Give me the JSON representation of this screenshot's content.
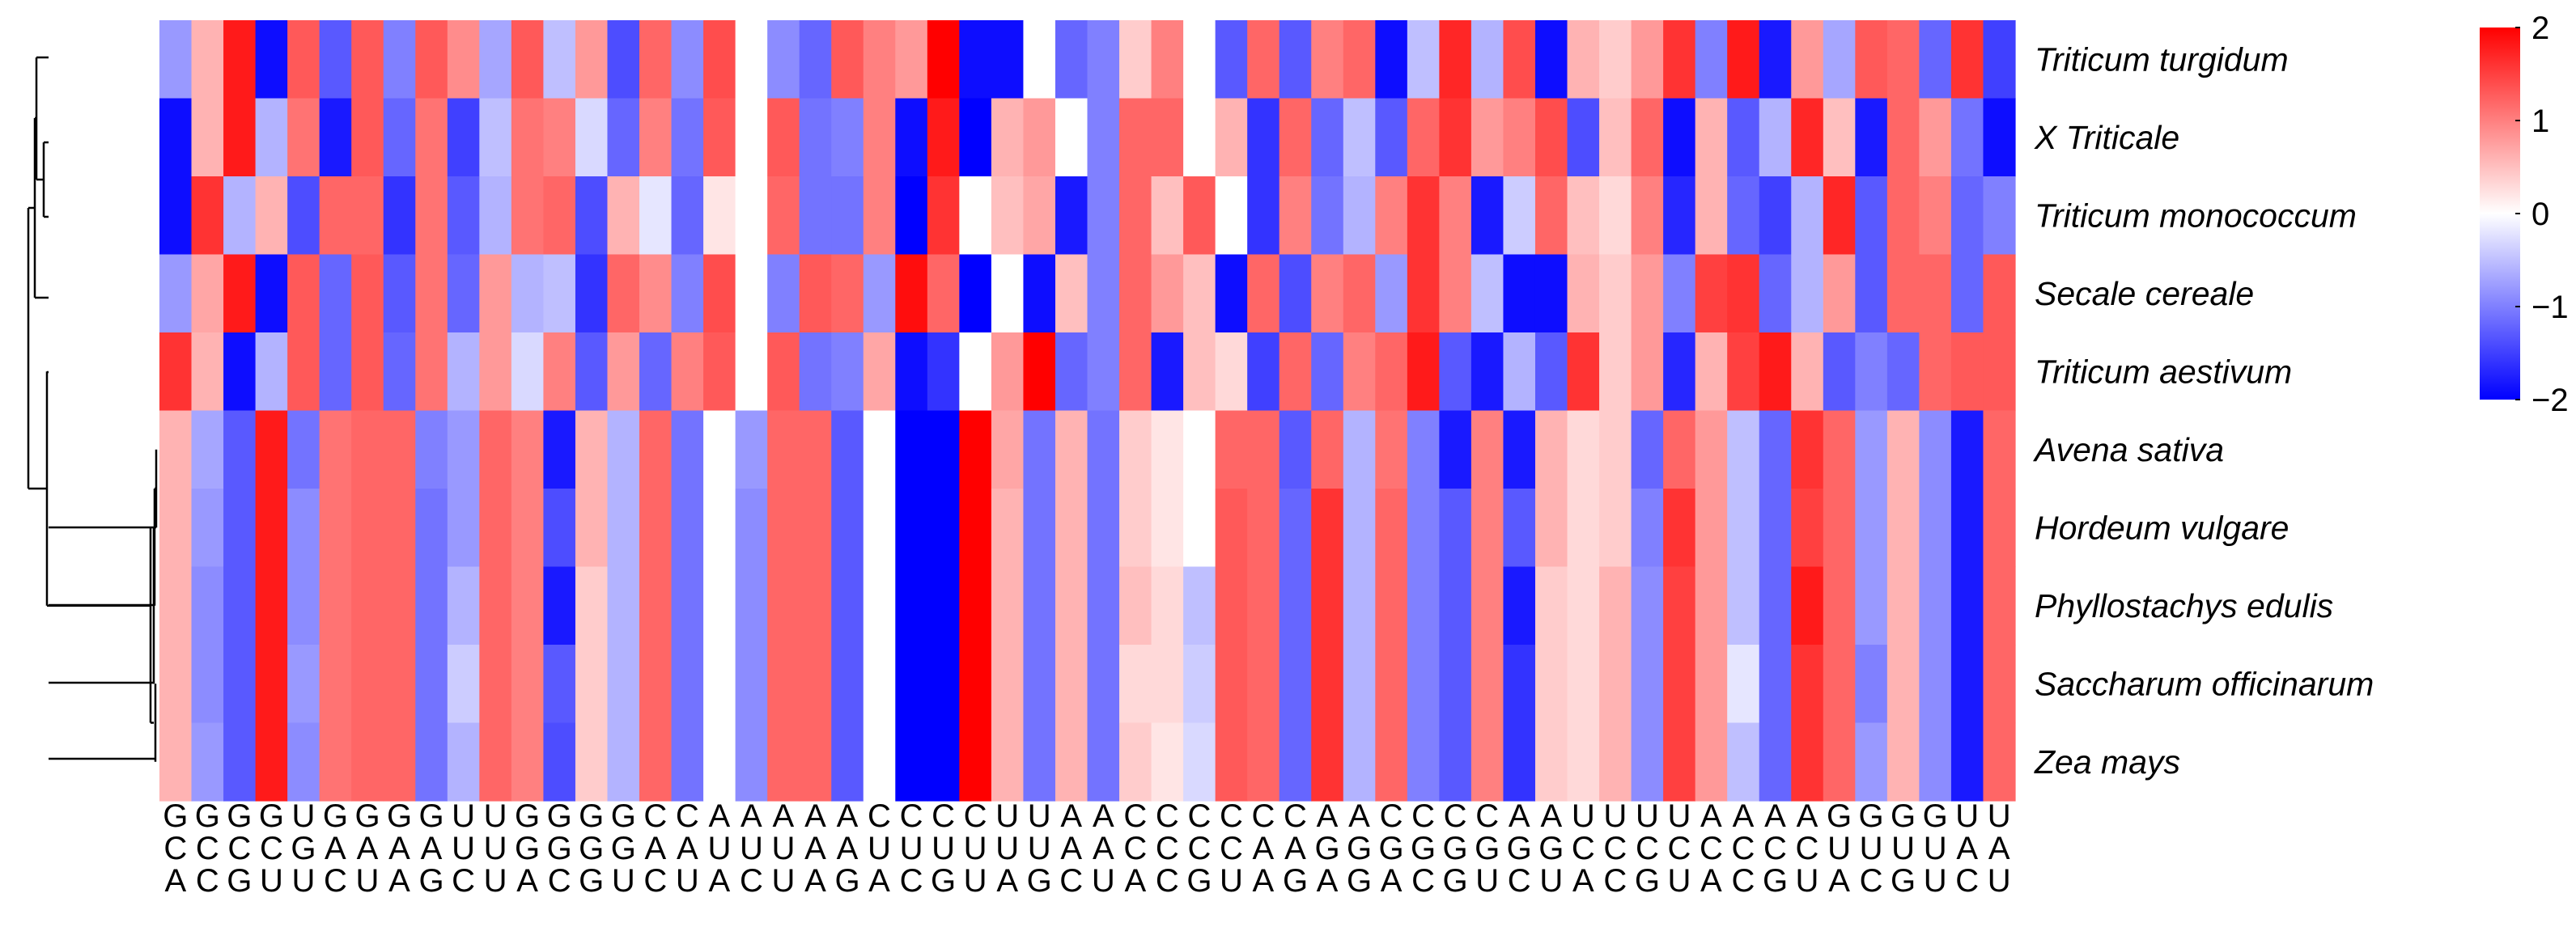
{
  "chart_data": {
    "type": "heatmap",
    "title": "",
    "xlabel": "",
    "ylabel": "",
    "rows": [
      "Triticum turgidum",
      "X Triticale",
      "Triticum monococcum",
      "Secale cereale",
      "Triticum aestivum",
      "Avena sativa",
      "Hordeum vulgare",
      "Phyllostachys edulis",
      "Saccharum officinarum",
      "Zea mays"
    ],
    "columns": [
      "GCA",
      "GCC",
      "GCG",
      "GCU",
      "UGU",
      "GAC",
      "GAU",
      "GAA",
      "GAG",
      "UUC",
      "UUU",
      "GGA",
      "GGC",
      "GGG",
      "GGU",
      "CAC",
      "CAU",
      "AUA",
      "AUC",
      "AUU",
      "AAA",
      "AAG",
      "CUA",
      "CUC",
      "CUG",
      "CUU",
      "UUA",
      "UUG",
      "AAC",
      "AAU",
      "CCA",
      "CCC",
      "CCG",
      "CCU",
      "CAA",
      "CAG",
      "AGA",
      "AGG",
      "CGA",
      "CGC",
      "CGG",
      "CGU",
      "AGC",
      "AGU",
      "UCA",
      "UCC",
      "UCG",
      "UCU",
      "ACA",
      "ACC",
      "ACG",
      "ACU",
      "GUA",
      "GUC",
      "GUG",
      "GUU",
      "UAC",
      "UAU"
    ],
    "values": [
      [
        -0.8,
        0.6,
        1.8,
        -1.9,
        1.3,
        -1.3,
        1.3,
        -1.0,
        1.3,
        0.9,
        -0.7,
        1.3,
        -0.5,
        0.8,
        -1.4,
        1.2,
        -0.9,
        1.4,
        0.0,
        -0.9,
        -1.2,
        1.3,
        1.0,
        0.8,
        2.0,
        -1.9,
        -1.9,
        0.0,
        -1.2,
        -1.0,
        0.4,
        1.0,
        0.0,
        -1.3,
        1.2,
        -1.3,
        1.0,
        1.2,
        -1.9,
        -0.5,
        1.7,
        -0.6,
        1.4,
        -1.9,
        0.6,
        0.4,
        0.8,
        1.6,
        -1.0,
        1.8,
        -1.8,
        0.8,
        -0.7,
        1.3,
        1.2,
        -1.2,
        1.6,
        -1.5
      ],
      [
        -1.9,
        0.6,
        1.8,
        -0.6,
        1.1,
        -1.8,
        1.3,
        -1.2,
        1.1,
        -1.5,
        -0.5,
        1.1,
        1.0,
        -0.3,
        -1.2,
        1.0,
        -1.1,
        1.3,
        0.0,
        1.3,
        -1.1,
        -1.0,
        1.0,
        -1.9,
        1.8,
        -2.0,
        0.6,
        0.8,
        0.0,
        -1.0,
        1.2,
        1.2,
        0.0,
        0.6,
        -1.6,
        1.2,
        -1.2,
        -0.5,
        -1.3,
        1.2,
        1.6,
        0.8,
        1.0,
        1.4,
        -1.4,
        0.5,
        1.2,
        -1.9,
        0.6,
        -1.3,
        -0.6,
        1.7,
        0.5,
        -1.8,
        1.2,
        0.8,
        -1.1,
        -1.9
      ],
      [
        -1.9,
        1.6,
        -0.6,
        0.6,
        -1.4,
        1.2,
        1.2,
        -1.6,
        1.1,
        -1.3,
        -0.6,
        1.1,
        1.2,
        -1.4,
        0.6,
        -0.2,
        -1.2,
        0.2,
        0.0,
        1.2,
        -1.1,
        -1.1,
        1.0,
        -2.0,
        1.6,
        0.0,
        0.5,
        0.7,
        -1.8,
        -1.0,
        1.2,
        0.5,
        1.3,
        0.0,
        -1.6,
        1.0,
        -1.1,
        -0.6,
        1.0,
        1.6,
        1.0,
        -1.8,
        -0.4,
        1.2,
        0.5,
        0.3,
        1.0,
        -1.7,
        0.6,
        -1.2,
        -1.5,
        -0.6,
        1.7,
        -1.3,
        1.2,
        1.0,
        -1.2,
        -1.0
      ],
      [
        -0.8,
        0.7,
        1.8,
        -1.9,
        1.3,
        -1.2,
        1.3,
        -1.3,
        1.1,
        -1.2,
        0.8,
        -0.6,
        -0.5,
        -1.6,
        1.2,
        0.9,
        -1.0,
        1.4,
        0.0,
        -1.0,
        1.3,
        1.2,
        -0.8,
        1.9,
        1.2,
        -2.0,
        0.0,
        -1.9,
        0.5,
        -1.0,
        1.2,
        0.8,
        0.5,
        -1.9,
        1.2,
        -1.4,
        1.0,
        1.2,
        -0.8,
        1.6,
        1.0,
        -0.5,
        -1.9,
        -1.9,
        0.6,
        0.4,
        0.8,
        -1.0,
        1.5,
        1.6,
        -1.2,
        -0.6,
        0.8,
        -1.3,
        1.2,
        1.2,
        -1.2,
        1.3
      ],
      [
        1.6,
        0.6,
        -1.9,
        -0.6,
        1.3,
        -1.2,
        1.3,
        -1.2,
        1.1,
        -0.6,
        0.8,
        -0.3,
        1.0,
        -1.3,
        0.8,
        -1.2,
        1.0,
        1.3,
        0.0,
        1.3,
        -1.1,
        -1.0,
        0.7,
        -1.9,
        -1.6,
        0.0,
        0.8,
        2.0,
        -1.2,
        -1.0,
        1.2,
        -1.8,
        0.5,
        0.3,
        -1.5,
        1.2,
        -1.2,
        1.0,
        1.2,
        1.8,
        -1.3,
        -1.8,
        -0.6,
        -1.3,
        1.6,
        0.4,
        0.8,
        -1.7,
        0.6,
        1.5,
        1.8,
        0.6,
        -1.3,
        -1.0,
        -1.2,
        1.2,
        1.3,
        1.3
      ],
      [
        0.6,
        -0.7,
        -1.3,
        1.8,
        -1.1,
        1.1,
        1.2,
        1.2,
        -1.0,
        -0.8,
        1.2,
        1.0,
        -1.8,
        0.6,
        -0.6,
        1.2,
        -1.1,
        0.0,
        -0.8,
        1.2,
        1.2,
        -1.3,
        0.0,
        -2.0,
        -2.0,
        2.0,
        0.7,
        -1.1,
        0.6,
        -1.1,
        0.4,
        0.2,
        0.0,
        1.2,
        1.2,
        -1.3,
        1.2,
        -0.6,
        1.1,
        -1.0,
        -1.8,
        1.0,
        -1.8,
        0.6,
        0.3,
        0.4,
        -1.2,
        1.2,
        0.8,
        -0.5,
        -1.2,
        1.6,
        1.2,
        -0.8,
        0.6,
        -0.9,
        -1.8,
        1.2
      ],
      [
        0.6,
        -0.8,
        -1.3,
        1.8,
        -0.9,
        1.1,
        1.2,
        1.2,
        -1.1,
        -0.8,
        1.2,
        1.0,
        -1.4,
        0.6,
        -0.6,
        1.2,
        -1.1,
        0.0,
        -0.9,
        1.2,
        1.2,
        -1.3,
        0.0,
        -2.0,
        -2.0,
        2.0,
        0.6,
        -1.1,
        0.6,
        -1.1,
        0.4,
        0.2,
        0.0,
        1.3,
        1.2,
        -1.2,
        1.6,
        -0.6,
        1.2,
        -1.0,
        -1.3,
        1.0,
        -1.3,
        0.6,
        0.3,
        0.4,
        -1.0,
        1.6,
        0.8,
        -0.5,
        -1.2,
        1.5,
        1.2,
        -0.8,
        0.6,
        -0.9,
        -1.8,
        1.2
      ],
      [
        0.6,
        -0.9,
        -1.3,
        1.8,
        -0.9,
        1.1,
        1.2,
        1.2,
        -1.1,
        -0.6,
        1.2,
        1.0,
        -1.8,
        0.4,
        -0.6,
        1.2,
        -1.1,
        0.0,
        -0.9,
        1.2,
        1.2,
        -1.3,
        0.0,
        -2.0,
        -2.0,
        2.0,
        0.6,
        -1.1,
        0.6,
        -1.1,
        0.5,
        0.3,
        -0.5,
        1.3,
        1.2,
        -1.2,
        1.6,
        -0.6,
        1.2,
        -1.0,
        -1.3,
        1.0,
        -1.8,
        0.4,
        0.3,
        0.6,
        -0.9,
        1.5,
        0.8,
        -0.5,
        -1.2,
        1.8,
        1.2,
        -0.8,
        0.6,
        -0.9,
        -1.8,
        1.2
      ],
      [
        0.6,
        -0.9,
        -1.3,
        1.8,
        -0.8,
        1.1,
        1.2,
        1.2,
        -1.1,
        -0.4,
        1.2,
        1.0,
        -1.3,
        0.4,
        -0.6,
        1.2,
        -1.1,
        0.0,
        -0.9,
        1.2,
        1.2,
        -1.3,
        0.0,
        -2.0,
        -2.0,
        2.0,
        0.6,
        -1.1,
        0.6,
        -1.1,
        0.3,
        0.3,
        -0.4,
        1.3,
        1.2,
        -1.2,
        1.6,
        -0.6,
        1.2,
        -1.0,
        -1.3,
        1.0,
        -1.6,
        0.4,
        0.3,
        0.6,
        -0.9,
        1.5,
        0.8,
        -0.2,
        -1.2,
        1.6,
        1.2,
        -1.0,
        0.6,
        -0.9,
        -1.8,
        1.2
      ],
      [
        0.6,
        -0.8,
        -1.3,
        1.8,
        -0.9,
        1.1,
        1.2,
        1.2,
        -1.1,
        -0.6,
        1.2,
        1.0,
        -1.4,
        0.4,
        -0.6,
        1.2,
        -1.1,
        0.0,
        -0.9,
        1.2,
        1.2,
        -1.3,
        0.0,
        -2.0,
        -2.0,
        2.0,
        0.6,
        -1.1,
        0.6,
        -1.1,
        0.4,
        0.2,
        -0.3,
        1.3,
        1.2,
        -1.2,
        1.6,
        -0.6,
        1.2,
        -1.0,
        -1.3,
        1.0,
        -1.6,
        0.4,
        0.3,
        0.6,
        -0.9,
        1.5,
        0.8,
        -0.5,
        -1.2,
        1.6,
        1.2,
        -0.8,
        0.6,
        -0.9,
        -1.8,
        1.2
      ]
    ],
    "zlim": [
      -2,
      2
    ],
    "colorscale": {
      "low": "#0000ff",
      "mid": "#ffffff",
      "high": "#ff0000"
    },
    "colorbar_ticks": [
      "2",
      "1",
      "0",
      "−1",
      "−2"
    ],
    "colorbar_tick_values": [
      2,
      1,
      0,
      -1,
      -2
    ],
    "legend_position": "right",
    "row_dendrogram": true,
    "grid": false
  }
}
